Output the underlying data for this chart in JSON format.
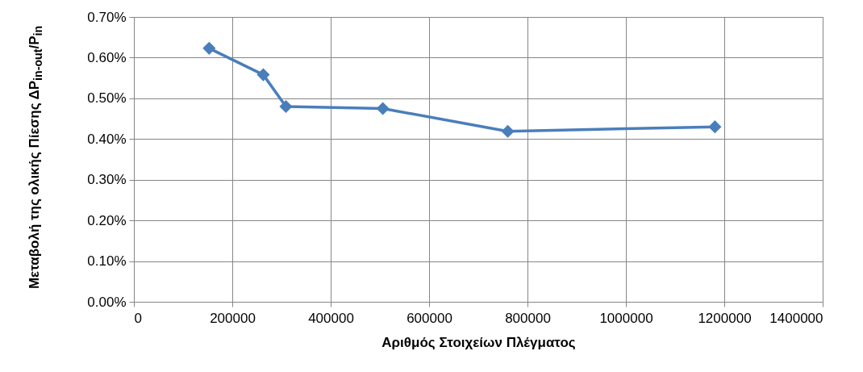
{
  "chart_data": {
    "type": "line",
    "xlabel": "Αριθμός  Στοιχείων Πλέγματος",
    "ylabel": "Μεταβολή της ολικής Πίεσης ΔP$_{in-out}$/P$_{in}$",
    "x": [
      153000,
      263000,
      309000,
      506000,
      760000,
      1181000
    ],
    "series": [
      {
        "color": "#4a7ebb",
        "values": [
          0.623,
          0.558,
          0.48,
          0.475,
          0.419,
          0.43
        ]
      }
    ],
    "xlim": [
      0,
      1400000
    ],
    "xticks": [
      0,
      200000,
      400000,
      600000,
      800000,
      1000000,
      1200000,
      1400000
    ],
    "ylim": [
      0,
      0.7
    ],
    "yticks": [
      {
        "value": 0,
        "label": "0.00%"
      },
      {
        "value": 0.1,
        "label": "0.10%"
      },
      {
        "value": 0.2,
        "label": "0.20%"
      },
      {
        "value": 0.3,
        "label": "0.30%"
      },
      {
        "value": 0.4,
        "label": "0.40%"
      },
      {
        "value": 0.5,
        "label": "0.50%"
      },
      {
        "value": 0.6,
        "label": "0.60%"
      },
      {
        "value": 0.7,
        "label": "0.70%"
      }
    ],
    "grid": true,
    "marker": "diamond",
    "line_style": "solid"
  }
}
